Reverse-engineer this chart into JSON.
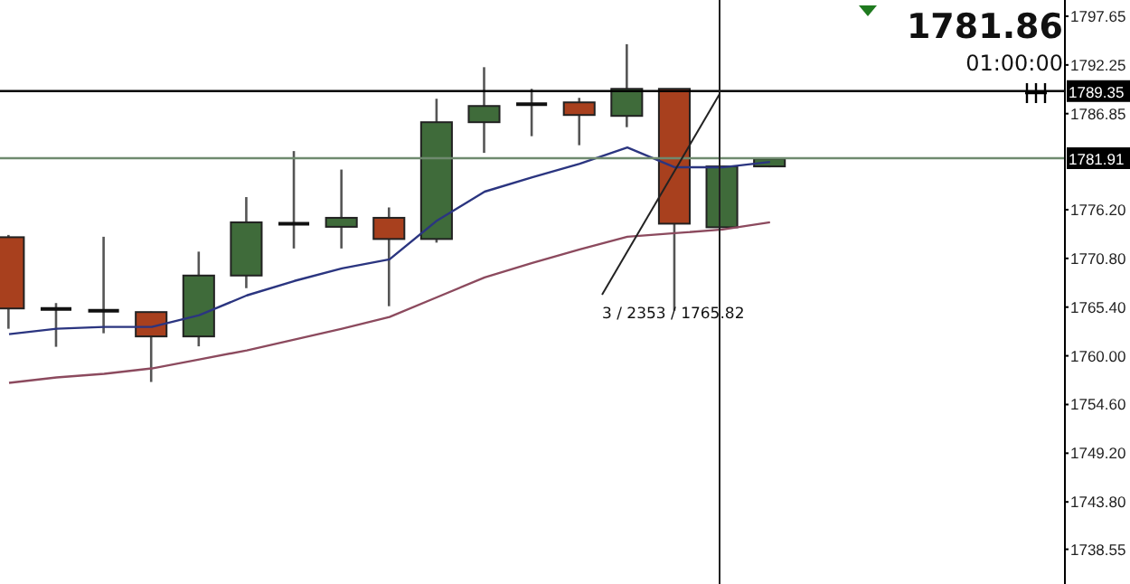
{
  "chart_data": {
    "type": "candlestick",
    "categories": [
      null,
      null,
      null,
      null,
      null,
      null,
      null,
      null,
      null,
      null,
      null,
      null,
      null,
      null,
      null,
      null,
      null,
      null,
      null,
      null,
      null,
      null,
      null
    ],
    "ohlc": [
      [
        1773.15,
        1773.4,
        1763.0,
        1765.25
      ],
      [
        1765.2,
        1765.85,
        1761.0,
        1765.2
      ],
      [
        1765.0,
        1773.2,
        1762.5,
        1765.0
      ],
      [
        1764.85,
        1764.9,
        1757.1,
        1762.15
      ],
      [
        1762.15,
        1771.55,
        1761.05,
        1768.9
      ],
      [
        1768.9,
        1777.6,
        1767.5,
        1774.8
      ],
      [
        1774.65,
        1782.7,
        1771.9,
        1774.65
      ],
      [
        1774.3,
        1780.65,
        1771.9,
        1775.3
      ],
      [
        1775.3,
        1776.45,
        1765.5,
        1772.95
      ],
      [
        1772.95,
        1788.5,
        1772.55,
        1785.9
      ],
      [
        1785.9,
        1792.0,
        1782.5,
        1787.7
      ],
      [
        1787.9,
        1789.6,
        1784.35,
        1787.9
      ],
      [
        1788.1,
        1788.6,
        1783.35,
        1786.7
      ],
      [
        1786.6,
        1794.55,
        1785.35,
        1789.6
      ],
      [
        1789.6,
        1789.6,
        1765.0,
        1774.65
      ],
      [
        1774.25,
        1781.0,
        1774.2,
        1781.0
      ],
      [
        1781.0,
        1782.0,
        1780.9,
        1781.86
      ],
      null,
      null,
      null,
      null,
      null,
      null
    ],
    "colors": [
      "#a8401e",
      "#111111",
      "#111111",
      "#a8401e",
      "#3f6b3a",
      "#3f6b3a",
      "#111111",
      "#3f6b3a",
      "#a8401e",
      "#3f6b3a",
      "#3f6b3a",
      "#111111",
      "#a8401e",
      "#3f6b3a",
      "#a8401e",
      "#3f6b3a",
      "#3f6b3a",
      null,
      null,
      null,
      null,
      null,
      null
    ],
    "series": [
      {
        "type": "line",
        "color": "#2b3580",
        "values": [
          1762.4,
          1763.0,
          1763.2,
          1763.2,
          1764.5,
          1766.7,
          1768.3,
          1769.7,
          1770.7,
          1775.0,
          1778.2,
          1779.8,
          1781.3,
          1783.1,
          1780.9,
          1780.9,
          1781.5,
          null,
          null,
          null,
          null,
          null,
          null
        ]
      },
      {
        "type": "line",
        "color": "#8c4a5e",
        "values": [
          1757.0,
          1757.6,
          1758.0,
          1758.6,
          1759.6,
          1760.6,
          1761.8,
          1763.0,
          1764.3,
          1766.5,
          1768.7,
          1770.3,
          1771.8,
          1773.2,
          1773.6,
          1774.0,
          1774.8,
          null,
          null,
          null,
          null,
          null,
          null
        ]
      }
    ],
    "ylim": [
      1734.7,
      1799.45
    ],
    "yticks": [
      1797.65,
      1792.25,
      1786.85,
      {
        "value": 1776.2,
        "label": "1776.20"
      },
      {
        "value": 1770.8,
        "label": "1770.80"
      },
      {
        "value": 1765.4,
        "label": "1765.40"
      },
      {
        "value": 1760,
        "label": "1760.00"
      },
      {
        "value": 1754.6,
        "label": "1754.60"
      },
      {
        "value": 1749.2,
        "label": "1749.20"
      },
      {
        "value": 1743.8,
        "label": "1743.80"
      },
      1738.55
    ],
    "ref_lines": [
      {
        "axis": "y",
        "value": 1789.35,
        "label": "1789.35",
        "color": "#000000"
      },
      {
        "axis": "y",
        "value": 1781.91,
        "label": "1781.91",
        "color": "#6f8a6f"
      }
    ],
    "annotations": [
      "1781.86",
      "01:00:00",
      "3 / 2353 / 1765.82"
    ],
    "grid": false
  }
}
